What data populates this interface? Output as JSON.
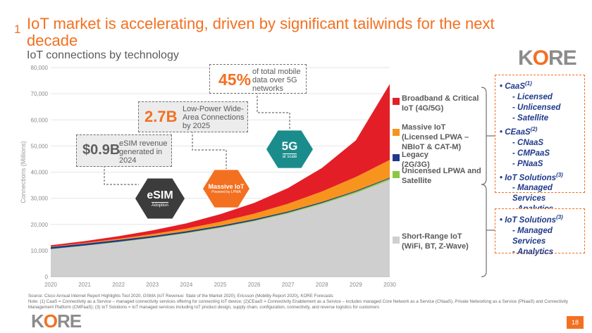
{
  "title": {
    "number": "1",
    "text": "IoT market is accelerating, driven by significant tailwinds for the next decade"
  },
  "chart_data": {
    "type": "area",
    "title": "IoT connections by technology",
    "xlabel": "",
    "ylabel": "Connections (Millions)",
    "x": [
      2020,
      2021,
      2022,
      2023,
      2024,
      2025,
      2026,
      2027,
      2028,
      2029,
      2030
    ],
    "x_tick_labels": [
      "2020",
      "2021",
      "2022",
      "2023",
      "2024",
      "2025",
      "2026",
      "2027",
      "2028",
      "2029",
      "2030"
    ],
    "y_tick_labels": [
      "0",
      "10,000",
      "20,000",
      "30,000",
      "40,000",
      "50,000",
      "60,000",
      "70,000",
      "80,000"
    ],
    "ylim": [
      0,
      80000
    ],
    "stacked": true,
    "series": [
      {
        "name": "Short-Range IoT (WiFi, BT, Z-Wave)",
        "color": "#cfcfcf",
        "values": [
          10500,
          11800,
          13200,
          14800,
          16600,
          18700,
          21200,
          24200,
          27800,
          32000,
          37000
        ]
      },
      {
        "name": "Unicensed LPWA and Satellite",
        "color": "#8dc63f",
        "values": [
          100,
          100,
          150,
          150,
          200,
          250,
          300,
          350,
          400,
          500,
          600
        ]
      },
      {
        "name": "Legacy (2G/3G)",
        "color": "#1f3a8a",
        "values": [
          800,
          750,
          700,
          650,
          600,
          550,
          500,
          450,
          400,
          350,
          300
        ]
      },
      {
        "name": "Massive IoT (Licensed LPWA – NBIoT & CAT-M)",
        "color": "#f7941d",
        "values": [
          100,
          250,
          450,
          700,
          1000,
          1500,
          2100,
          2900,
          4000,
          5300,
          6800
        ]
      },
      {
        "name": "Broadband & Critical IoT (4G/5G)",
        "color": "#e41e26",
        "values": [
          500,
          700,
          1000,
          1400,
          2000,
          2900,
          4100,
          6000,
          9000,
          14000,
          29000
        ]
      }
    ],
    "legend": [
      {
        "label": "Broadband & Critical IoT (4G/5G)",
        "color": "#e41e26"
      },
      {
        "label": "Massive IoT (Licensed LPWA – NBIoT & CAT-M)",
        "color": "#f7941d"
      },
      {
        "label": "Legacy (2G/3G)",
        "color": "#1f3a8a"
      },
      {
        "label": "Unicensed LPWA and Satellite",
        "color": "#8dc63f"
      },
      {
        "label": "Short-Range IoT (WiFi, BT, Z-Wave)",
        "color": "#cfcfcf"
      }
    ],
    "annotations": {
      "mobile": {
        "big": "45%",
        "text": "of total mobile data over 5G networks"
      },
      "lpwa": {
        "big": "2.7B",
        "text": "Low-Power Wide-Area Connections by 2025"
      },
      "esim_rev": {
        "big": "$0.9B",
        "text": "eSIM revenue generated in 2024"
      },
      "hex_5g": {
        "title": "5G",
        "sub": "at scale"
      },
      "hex_massive": {
        "title": "Massive IoT",
        "sub": "Powered by LPWA"
      },
      "hex_esim": {
        "title": "eSIM",
        "sub": "Adoption"
      }
    }
  },
  "right_box_top": [
    {
      "text": "CaaS",
      "sup": "(1)",
      "bullet": "•"
    },
    {
      "text": "Licensed",
      "bullet": "-"
    },
    {
      "text": "Unlicensed",
      "bullet": "-"
    },
    {
      "text": "Satellite",
      "bullet": "-"
    },
    {
      "text": "CEaaS",
      "sup": "(2)",
      "bullet": "•"
    },
    {
      "text": "CNaaS",
      "bullet": "-"
    },
    {
      "text": "CMPaaS",
      "bullet": "-"
    },
    {
      "text": "PNaaS",
      "bullet": "-"
    },
    {
      "text": "IoT Solutions",
      "sup": "(3)",
      "bullet": "•"
    },
    {
      "text": "Managed Services",
      "bullet": "-"
    },
    {
      "text": "Analytics",
      "bullet": "-"
    }
  ],
  "right_box_bottom": [
    {
      "text": "IoT Solutions",
      "sup": "(3)",
      "bullet": "•"
    },
    {
      "text": "Managed Services",
      "bullet": "-"
    },
    {
      "text": "Analytics",
      "bullet": "-"
    }
  ],
  "logo": {
    "text_k": "K",
    "text_o": "O",
    "text_re": "RE"
  },
  "footer": {
    "source": "Source: Cisco Annual Internet Report Highlights Tool 2020, GSMA (IoT Revenue: State of the Market 2020); Ericsson (Mobility Report 2020), KORE Forecasts",
    "note": "Note: (1) CaaS = Connectivity as a Service – managed connectivity services offering for connecting IoT device; (2)CEaaS = Connectivity Enablement as a Service – includes managed Core Network as a Service (CNaaS), Private Networking as a Service (PNaaS) and Connectivity Management Platform (CMPaaS); (3) IoT Solutions = IoT managed services including IoT product design, supply chain, configuration, connectivity, and reverse logistics for customers",
    "page": "18"
  },
  "colors": {
    "accent": "#f37021",
    "navy": "#1f3a8a"
  }
}
